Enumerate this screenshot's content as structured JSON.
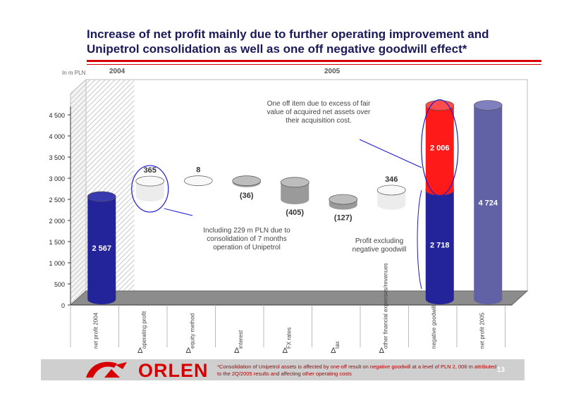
{
  "slide": {
    "title": "Increase of net profit mainly due to further operating improvement and Unipetrol consolidation as well as one off negative goodwill effect*",
    "brand": "ORLEN",
    "page_number": "13",
    "footnote": "*Consolidation of Unipetrol assets is affected by one-off result on negative goodwill at a level of PLN 2, 006 m attributed to the 2Q/2005 results and affecting other operating costs"
  },
  "colors": {
    "accent_red": "#d90000",
    "bar_blue": "#24249a",
    "bar_purple": "#6161a6",
    "goodwill_red": "#ff1a1a",
    "delta_positive": "#ececec",
    "delta_negative": "#9a9a9a",
    "floor": "#8c8c8c"
  },
  "chart_data": {
    "type": "bar",
    "subtype": "waterfall",
    "unit_label": "In m PLN",
    "period_labels": [
      "2004",
      "2005"
    ],
    "yticks": [
      "0",
      "500",
      "1 000",
      "1 500",
      "2 000",
      "2 500",
      "3 000",
      "3 500",
      "4 000",
      "4 500"
    ],
    "ylim": [
      0,
      5000
    ],
    "categories": [
      {
        "delta": false,
        "label": "net profit 2004"
      },
      {
        "delta": true,
        "label": "operating profit"
      },
      {
        "delta": true,
        "label": "equity method"
      },
      {
        "delta": true,
        "label": "interest"
      },
      {
        "delta": true,
        "label": "FX rates"
      },
      {
        "delta": true,
        "label": "tax"
      },
      {
        "delta": true,
        "label": "other financial expenses/revenues"
      },
      {
        "delta": false,
        "label": "negative goodwill"
      },
      {
        "delta": false,
        "label": "net profit 2005"
      }
    ],
    "delta_symbol": "Δ",
    "steps": [
      {
        "kind": "total",
        "value": 2567,
        "label": "2 567"
      },
      {
        "kind": "delta",
        "value": 365,
        "label": "365"
      },
      {
        "kind": "delta",
        "value": 8,
        "label": "8"
      },
      {
        "kind": "delta",
        "value": -36,
        "label": "(36)"
      },
      {
        "kind": "delta",
        "value": -405,
        "label": "(405)"
      },
      {
        "kind": "delta",
        "value": -127,
        "label": "(127)"
      },
      {
        "kind": "delta",
        "value": 346,
        "label": "346"
      },
      {
        "kind": "stacked",
        "base": 2718,
        "base_label": "2 718",
        "top": 2006,
        "top_label": "2 006"
      },
      {
        "kind": "total",
        "value": 4724,
        "label": "4 724"
      }
    ],
    "annotations": {
      "consolidation": "Including 229 m PLN due to consolidation of 7 months operation of Unipetrol",
      "one_off": "One off item due to excess of fair value of acquired net assets over their acquisition cost.",
      "profit_excluding": "Profit excluding negative goodwill"
    }
  }
}
